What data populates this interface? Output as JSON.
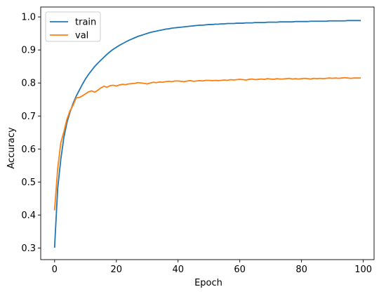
{
  "chart_data": {
    "type": "line",
    "xlabel": "Epoch",
    "ylabel": "Accuracy",
    "xlim": [
      -4.5,
      103.5
    ],
    "ylim": [
      0.265,
      1.03
    ],
    "xticks": [
      0,
      20,
      40,
      60,
      80,
      100
    ],
    "yticks": [
      0.3,
      0.4,
      0.5,
      0.6,
      0.7,
      0.8,
      0.9,
      1.0
    ],
    "xtick_labels": [
      "0",
      "20",
      "40",
      "60",
      "80",
      "100"
    ],
    "ytick_labels": [
      "0.3",
      "0.4",
      "0.5",
      "0.6",
      "0.7",
      "0.8",
      "0.9",
      "1.0"
    ],
    "grid": false,
    "legend_position": "top-left",
    "series": [
      {
        "name": "train",
        "color": "#1f77b4",
        "x": [
          0,
          1,
          2,
          3,
          4,
          5,
          6,
          7,
          8,
          9,
          10,
          11,
          12,
          13,
          14,
          15,
          16,
          17,
          18,
          19,
          20,
          21,
          22,
          23,
          24,
          25,
          26,
          27,
          28,
          29,
          30,
          31,
          32,
          33,
          34,
          35,
          36,
          37,
          38,
          39,
          40,
          41,
          42,
          43,
          44,
          45,
          46,
          47,
          48,
          49,
          50,
          51,
          52,
          53,
          54,
          55,
          56,
          57,
          58,
          59,
          60,
          61,
          62,
          63,
          64,
          65,
          66,
          67,
          68,
          69,
          70,
          71,
          72,
          73,
          74,
          75,
          76,
          77,
          78,
          79,
          80,
          81,
          82,
          83,
          84,
          85,
          86,
          87,
          88,
          89,
          90,
          91,
          92,
          93,
          94,
          95,
          96,
          97,
          98,
          99
        ],
        "values": [
          0.303,
          0.48,
          0.568,
          0.635,
          0.68,
          0.712,
          0.738,
          0.76,
          0.778,
          0.796,
          0.812,
          0.826,
          0.838,
          0.85,
          0.86,
          0.869,
          0.878,
          0.887,
          0.895,
          0.902,
          0.908,
          0.914,
          0.919,
          0.924,
          0.929,
          0.933,
          0.937,
          0.941,
          0.944,
          0.947,
          0.95,
          0.953,
          0.955,
          0.957,
          0.959,
          0.961,
          0.963,
          0.964,
          0.966,
          0.967,
          0.968,
          0.969,
          0.97,
          0.971,
          0.972,
          0.973,
          0.974,
          0.975,
          0.975,
          0.976,
          0.977,
          0.977,
          0.978,
          0.978,
          0.979,
          0.979,
          0.98,
          0.98,
          0.98,
          0.981,
          0.981,
          0.981,
          0.982,
          0.982,
          0.982,
          0.983,
          0.983,
          0.983,
          0.983,
          0.984,
          0.984,
          0.984,
          0.984,
          0.985,
          0.985,
          0.985,
          0.985,
          0.985,
          0.986,
          0.986,
          0.986,
          0.986,
          0.986,
          0.987,
          0.987,
          0.987,
          0.987,
          0.987,
          0.987,
          0.988,
          0.988,
          0.988,
          0.988,
          0.988,
          0.988,
          0.989,
          0.989,
          0.989,
          0.989,
          0.989
        ]
      },
      {
        "name": "val",
        "color": "#ff7f0e",
        "x": [
          0,
          1,
          2,
          3,
          4,
          5,
          6,
          7,
          8,
          9,
          10,
          11,
          12,
          13,
          14,
          15,
          16,
          17,
          18,
          19,
          20,
          21,
          22,
          23,
          24,
          25,
          26,
          27,
          28,
          29,
          30,
          31,
          32,
          33,
          34,
          35,
          36,
          37,
          38,
          39,
          40,
          41,
          42,
          43,
          44,
          45,
          46,
          47,
          48,
          49,
          50,
          51,
          52,
          53,
          54,
          55,
          56,
          57,
          58,
          59,
          60,
          61,
          62,
          63,
          64,
          65,
          66,
          67,
          68,
          69,
          70,
          71,
          72,
          73,
          74,
          75,
          76,
          77,
          78,
          79,
          80,
          81,
          82,
          83,
          84,
          85,
          86,
          87,
          88,
          89,
          90,
          91,
          92,
          93,
          94,
          95,
          96,
          97,
          98,
          99
        ],
        "values": [
          0.416,
          0.54,
          0.618,
          0.652,
          0.69,
          0.716,
          0.733,
          0.755,
          0.756,
          0.761,
          0.767,
          0.773,
          0.776,
          0.772,
          0.778,
          0.785,
          0.79,
          0.787,
          0.792,
          0.793,
          0.791,
          0.794,
          0.796,
          0.795,
          0.797,
          0.798,
          0.799,
          0.801,
          0.8,
          0.799,
          0.797,
          0.8,
          0.802,
          0.801,
          0.803,
          0.802,
          0.804,
          0.805,
          0.804,
          0.806,
          0.806,
          0.805,
          0.804,
          0.806,
          0.807,
          0.805,
          0.806,
          0.807,
          0.806,
          0.808,
          0.808,
          0.807,
          0.808,
          0.807,
          0.808,
          0.809,
          0.808,
          0.81,
          0.809,
          0.81,
          0.811,
          0.81,
          0.809,
          0.811,
          0.812,
          0.81,
          0.811,
          0.812,
          0.811,
          0.813,
          0.812,
          0.811,
          0.813,
          0.812,
          0.812,
          0.813,
          0.814,
          0.812,
          0.813,
          0.812,
          0.813,
          0.814,
          0.813,
          0.812,
          0.814,
          0.813,
          0.814,
          0.813,
          0.814,
          0.815,
          0.814,
          0.815,
          0.814,
          0.815,
          0.816,
          0.815,
          0.814,
          0.815,
          0.815,
          0.815
        ]
      }
    ]
  }
}
